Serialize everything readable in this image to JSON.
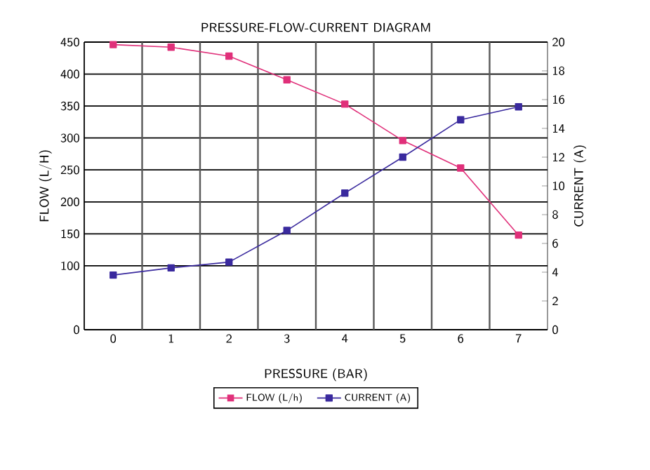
{
  "chart_data": {
    "type": "line",
    "title": "PRESSURE-FLOW-CURRENT DIAGRAM",
    "xlabel": "PRESSURE (BAR)",
    "ylabel": "FLOW (L/H)",
    "y2label": "CURRENT (A)",
    "categories": [
      "0",
      "1",
      "2",
      "3",
      "4",
      "5",
      "6",
      "7"
    ],
    "series": [
      {
        "name": "FLOW (L/h)",
        "color": "#e0307a",
        "values": [
          446,
          442,
          428,
          391,
          353,
          296,
          253,
          148
        ]
      },
      {
        "name": "CURRENT (A)",
        "color": "#3a2a9e",
        "axis": "y2",
        "values": [
          3.8,
          4.3,
          4.7,
          6.9,
          9.5,
          12.0,
          14.6,
          15.5
        ]
      }
    ],
    "ylim": [
      0,
      450
    ],
    "yticks": [
      0,
      100,
      150,
      200,
      250,
      300,
      350,
      400,
      450
    ],
    "y2lim": [
      0,
      20
    ],
    "y2ticks": [
      0,
      2,
      4,
      6,
      8,
      10,
      12,
      14,
      16,
      18,
      20
    ],
    "grid": true,
    "legend": "bottom",
    "marker": "square",
    "line_style": "solid"
  }
}
